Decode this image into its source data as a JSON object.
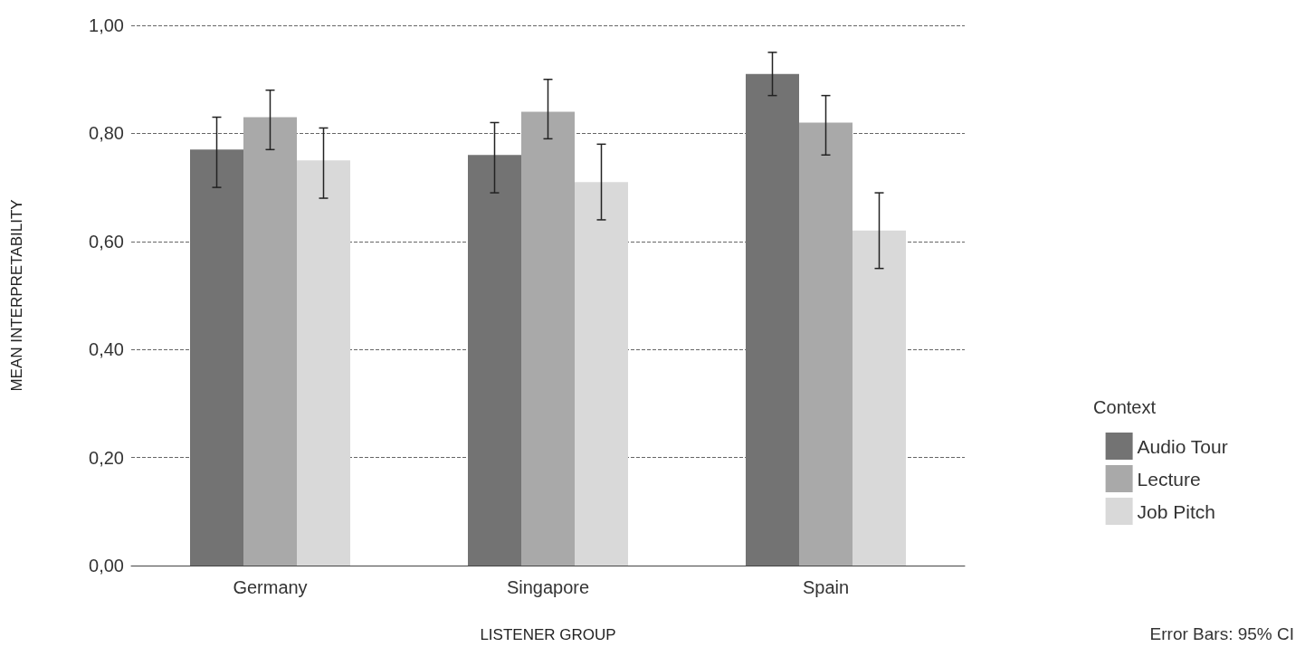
{
  "chart_data": {
    "type": "bar",
    "xlabel": "LISTENER GROUP",
    "ylabel": "MEAN INTERPRETABILITY",
    "legend_title": "Context",
    "categories": [
      "Germany",
      "Singapore",
      "Spain"
    ],
    "series": [
      {
        "name": "Audio Tour",
        "color": "#737373",
        "values": [
          0.77,
          0.76,
          0.91
        ],
        "errors": [
          [
            0.7,
            0.83
          ],
          [
            0.69,
            0.82
          ],
          [
            0.87,
            0.95
          ]
        ]
      },
      {
        "name": "Lecture",
        "color": "#a9a9a9",
        "values": [
          0.83,
          0.84,
          0.82
        ],
        "errors": [
          [
            0.77,
            0.88
          ],
          [
            0.79,
            0.9
          ],
          [
            0.76,
            0.87
          ]
        ]
      },
      {
        "name": "Job Pitch",
        "color": "#d9d9d9",
        "values": [
          0.75,
          0.71,
          0.62
        ],
        "errors": [
          [
            0.68,
            0.81
          ],
          [
            0.64,
            0.78
          ],
          [
            0.55,
            0.69
          ]
        ]
      }
    ],
    "ylim": [
      0,
      1
    ],
    "yticks": [
      {
        "value": 0,
        "label": "0,00"
      },
      {
        "value": 0.2,
        "label": "0,20"
      },
      {
        "value": 0.4,
        "label": "0,40"
      },
      {
        "value": 0.6,
        "label": "0,60"
      },
      {
        "value": 0.8,
        "label": "0,80"
      },
      {
        "value": 1,
        "label": "1,00"
      }
    ],
    "grid": "y",
    "line_style": "dashed",
    "legend": "bottom right",
    "annotations": [
      "Error Bars: 95% CI"
    ]
  }
}
